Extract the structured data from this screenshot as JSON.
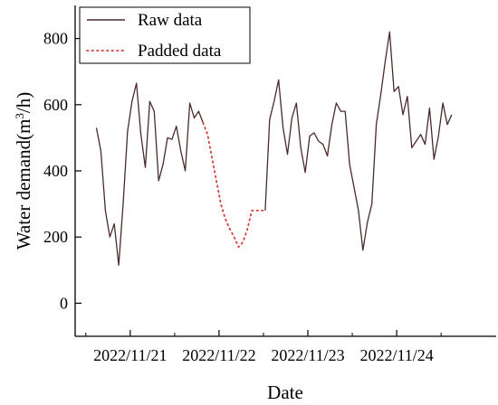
{
  "chart_data": {
    "type": "line",
    "xlabel": "Date",
    "ylabel_main": "Water demand(m",
    "ylabel_sup": "3",
    "ylabel_tail": "/h)",
    "x_tick_labels": [
      "2022/11/21",
      "2022/11/22",
      "2022/11/23",
      "2022/11/24"
    ],
    "x_unit": "days since 2022/11/21 00:00",
    "xlim": [
      -0.62,
      4.12
    ],
    "ylim": [
      -100,
      900
    ],
    "y_ticks": [
      0,
      200,
      400,
      600,
      800
    ],
    "legend_position": "top-left",
    "series": [
      {
        "name": "Raw data",
        "style": "solid",
        "color": "#4a2a2a",
        "segments": [
          [
            [
              -0.38,
              530
            ],
            [
              -0.33,
              460
            ],
            [
              -0.28,
              280
            ],
            [
              -0.23,
              200
            ],
            [
              -0.18,
              240
            ],
            [
              -0.13,
              115
            ],
            [
              -0.08,
              300
            ],
            [
              -0.03,
              520
            ],
            [
              0.02,
              610
            ],
            [
              0.07,
              665
            ],
            [
              0.12,
              510
            ],
            [
              0.17,
              410
            ],
            [
              0.22,
              610
            ],
            [
              0.27,
              580
            ],
            [
              0.32,
              370
            ],
            [
              0.37,
              420
            ],
            [
              0.42,
              500
            ],
            [
              0.47,
              495
            ],
            [
              0.52,
              535
            ],
            [
              0.57,
              460
            ],
            [
              0.62,
              400
            ],
            [
              0.67,
              605
            ],
            [
              0.72,
              560
            ],
            [
              0.77,
              580
            ],
            [
              0.82,
              545
            ]
          ],
          [
            [
              1.52,
              280
            ],
            [
              1.57,
              555
            ],
            [
              1.62,
              610
            ],
            [
              1.67,
              675
            ],
            [
              1.72,
              530
            ],
            [
              1.77,
              450
            ],
            [
              1.82,
              560
            ],
            [
              1.87,
              605
            ],
            [
              1.92,
              470
            ],
            [
              1.97,
              395
            ],
            [
              2.02,
              505
            ],
            [
              2.07,
              515
            ],
            [
              2.12,
              490
            ],
            [
              2.17,
              480
            ],
            [
              2.22,
              445
            ],
            [
              2.27,
              540
            ],
            [
              2.32,
              605
            ],
            [
              2.37,
              580
            ],
            [
              2.42,
              580
            ],
            [
              2.47,
              420
            ],
            [
              2.52,
              350
            ],
            [
              2.57,
              280
            ],
            [
              2.62,
              160
            ],
            [
              2.67,
              245
            ],
            [
              2.72,
              300
            ],
            [
              2.77,
              540
            ],
            [
              2.82,
              630
            ],
            [
              2.87,
              730
            ],
            [
              2.92,
              820
            ],
            [
              2.97,
              640
            ],
            [
              3.02,
              655
            ],
            [
              3.07,
              570
            ],
            [
              3.12,
              625
            ],
            [
              3.17,
              470
            ],
            [
              3.22,
              490
            ],
            [
              3.27,
              510
            ],
            [
              3.32,
              480
            ],
            [
              3.37,
              590
            ],
            [
              3.42,
              435
            ],
            [
              3.47,
              505
            ],
            [
              3.52,
              605
            ],
            [
              3.57,
              540
            ],
            [
              3.62,
              570
            ]
          ]
        ]
      },
      {
        "name": "Padded data",
        "style": "dotted",
        "color": "#d83a3a",
        "segments": [
          [
            [
              0.82,
              545
            ],
            [
              0.87,
              510
            ],
            [
              0.92,
              440
            ],
            [
              0.97,
              370
            ],
            [
              1.02,
              300
            ],
            [
              1.07,
              255
            ],
            [
              1.12,
              225
            ],
            [
              1.17,
              200
            ],
            [
              1.22,
              170
            ],
            [
              1.27,
              185
            ],
            [
              1.32,
              225
            ],
            [
              1.37,
              280
            ],
            [
              1.42,
              280
            ],
            [
              1.47,
              280
            ],
            [
              1.52,
              280
            ]
          ]
        ]
      }
    ]
  },
  "colors": {
    "axis": "#000000",
    "raw": "#4a2a2a",
    "padded": "#d83a3a"
  }
}
